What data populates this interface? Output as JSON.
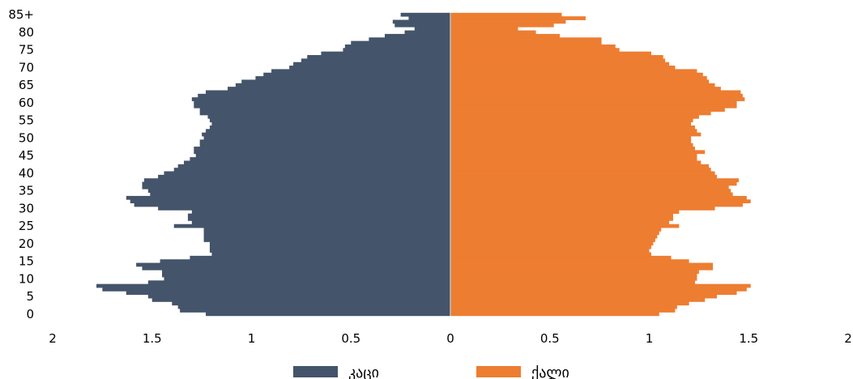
{
  "chart_data": {
    "type": "bar",
    "orientation": "horizontal-population-pyramid",
    "title": "",
    "xlabel": "",
    "ylabel": "",
    "xlim": [
      -2,
      2
    ],
    "x_tick_labels": [
      "2",
      "1.5",
      "1",
      "0.5",
      "0",
      "0.5",
      "1",
      "1.5",
      "2"
    ],
    "x_tick_values": [
      -2,
      -1.5,
      -1,
      -0.5,
      0,
      0.5,
      1,
      1.5,
      2
    ],
    "y_tick_labels": [
      "85+",
      "80",
      "75",
      "70",
      "65",
      "60",
      "55",
      "50",
      "45",
      "40",
      "35",
      "30",
      "25",
      "20",
      "15",
      "10",
      "5",
      "0"
    ],
    "y_tick_ages": [
      85,
      80,
      75,
      70,
      65,
      60,
      55,
      50,
      45,
      40,
      35,
      30,
      25,
      20,
      15,
      10,
      5,
      0
    ],
    "ages": [
      0,
      1,
      2,
      3,
      4,
      5,
      6,
      7,
      8,
      9,
      10,
      11,
      12,
      13,
      14,
      15,
      16,
      17,
      18,
      19,
      20,
      21,
      22,
      23,
      24,
      25,
      26,
      27,
      28,
      29,
      30,
      31,
      32,
      33,
      34,
      35,
      36,
      37,
      38,
      39,
      40,
      41,
      42,
      43,
      44,
      45,
      46,
      47,
      48,
      49,
      50,
      51,
      52,
      53,
      54,
      55,
      56,
      57,
      58,
      59,
      60,
      61,
      62,
      63,
      64,
      65,
      66,
      67,
      68,
      69,
      70,
      71,
      72,
      73,
      74,
      75,
      76,
      77,
      78,
      79,
      80,
      81,
      82,
      83,
      84,
      85
    ],
    "legend_position": "bottom",
    "grid": false,
    "series": [
      {
        "name": "კაცი",
        "side": "left",
        "color": "#44546A",
        "values": [
          1.23,
          1.36,
          1.37,
          1.4,
          1.5,
          1.52,
          1.63,
          1.75,
          1.78,
          1.52,
          1.44,
          1.45,
          1.45,
          1.55,
          1.58,
          1.46,
          1.31,
          1.2,
          1.21,
          1.21,
          1.21,
          1.24,
          1.24,
          1.24,
          1.24,
          1.39,
          1.3,
          1.32,
          1.32,
          1.3,
          1.47,
          1.59,
          1.61,
          1.63,
          1.51,
          1.52,
          1.55,
          1.55,
          1.54,
          1.47,
          1.44,
          1.39,
          1.37,
          1.34,
          1.31,
          1.28,
          1.29,
          1.29,
          1.26,
          1.26,
          1.24,
          1.25,
          1.23,
          1.21,
          1.2,
          1.21,
          1.22,
          1.26,
          1.26,
          1.29,
          1.29,
          1.3,
          1.27,
          1.23,
          1.12,
          1.08,
          1.05,
          0.98,
          0.94,
          0.9,
          0.81,
          0.79,
          0.75,
          0.72,
          0.65,
          0.54,
          0.53,
          0.5,
          0.41,
          0.33,
          0.23,
          0.18,
          0.28,
          0.29,
          0.21,
          0.25
        ]
      },
      {
        "name": "ქალი",
        "side": "right",
        "color": "#ED7D31",
        "values": [
          1.05,
          1.13,
          1.14,
          1.2,
          1.28,
          1.34,
          1.44,
          1.49,
          1.51,
          1.23,
          1.24,
          1.24,
          1.25,
          1.32,
          1.32,
          1.2,
          1.11,
          1.01,
          1.0,
          1.01,
          1.02,
          1.03,
          1.04,
          1.05,
          1.06,
          1.15,
          1.1,
          1.12,
          1.12,
          1.15,
          1.33,
          1.47,
          1.51,
          1.49,
          1.42,
          1.41,
          1.4,
          1.44,
          1.45,
          1.34,
          1.33,
          1.31,
          1.3,
          1.26,
          1.24,
          1.24,
          1.28,
          1.23,
          1.22,
          1.21,
          1.21,
          1.26,
          1.24,
          1.23,
          1.21,
          1.22,
          1.25,
          1.31,
          1.38,
          1.44,
          1.44,
          1.48,
          1.47,
          1.46,
          1.36,
          1.33,
          1.3,
          1.29,
          1.27,
          1.24,
          1.13,
          1.1,
          1.08,
          1.07,
          1.01,
          0.85,
          0.83,
          0.76,
          0.76,
          0.55,
          0.43,
          0.34,
          0.52,
          0.58,
          0.68,
          0.56
        ]
      }
    ]
  }
}
